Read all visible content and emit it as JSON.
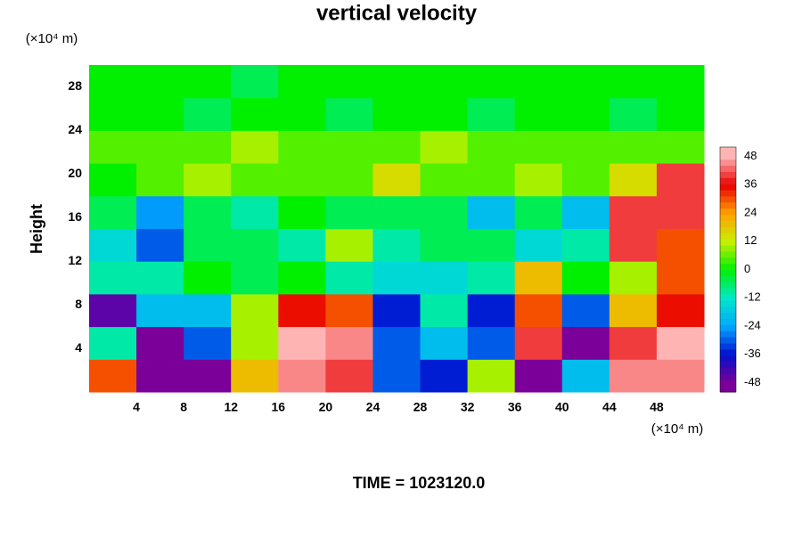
{
  "chart_data": {
    "type": "heatmap",
    "title": "vertical velocity",
    "y_label": "Height",
    "x_unit": "(×10⁴ m)",
    "y_unit": "(×10⁴ m)",
    "footer": "TIME = 1023120.0",
    "xlim": [
      0,
      52
    ],
    "ylim": [
      0,
      30
    ],
    "xticks": [
      4,
      8,
      12,
      16,
      20,
      24,
      28,
      32,
      36,
      40,
      44,
      48
    ],
    "yticks": [
      4,
      8,
      12,
      16,
      20,
      24,
      28
    ],
    "x_edges": [
      0,
      4,
      8,
      12,
      16,
      20,
      24,
      28,
      32,
      36,
      40,
      44,
      48,
      52
    ],
    "y_edges": [
      0,
      3,
      6,
      9,
      12,
      15,
      18,
      21,
      24,
      27,
      30
    ],
    "z": [
      [
        30,
        -48,
        -48,
        20,
        45,
        40,
        -30,
        -35,
        10,
        -48,
        -20,
        45,
        45
      ],
      [
        -10,
        -48,
        -30,
        10,
        48,
        45,
        -30,
        -20,
        -30,
        40,
        -48,
        40,
        48
      ],
      [
        -45,
        -20,
        -20,
        10,
        35,
        30,
        -35,
        -10,
        -35,
        30,
        -30,
        20,
        35
      ],
      [
        -10,
        -10,
        0,
        -5,
        0,
        -10,
        -15,
        -15,
        -10,
        20,
        0,
        10,
        30
      ],
      [
        -15,
        -30,
        -5,
        -5,
        -10,
        10,
        -10,
        -5,
        -5,
        -15,
        -10,
        40,
        30
      ],
      [
        -5,
        -25,
        -5,
        -10,
        0,
        -5,
        -5,
        -5,
        -20,
        -5,
        -20,
        40,
        40
      ],
      [
        0,
        5,
        10,
        5,
        5,
        5,
        15,
        5,
        5,
        10,
        5,
        15,
        40
      ],
      [
        5,
        5,
        5,
        10,
        5,
        5,
        5,
        10,
        5,
        5,
        5,
        5,
        5
      ],
      [
        0,
        0,
        -5,
        0,
        0,
        -5,
        0,
        0,
        -5,
        0,
        0,
        -5,
        0
      ],
      [
        0,
        0,
        0,
        -5,
        0,
        0,
        0,
        0,
        0,
        0,
        0,
        0,
        0
      ]
    ],
    "zlim": [
      -52,
      52
    ],
    "zticks": [
      48,
      36,
      24,
      12,
      0,
      -12,
      -24,
      -36,
      -48
    ],
    "colorscale": [
      [
        -48,
        "#7a0099"
      ],
      [
        -36,
        "#0010d0"
      ],
      [
        -24,
        "#00a8ff"
      ],
      [
        -12,
        "#00e8c8"
      ],
      [
        0,
        "#00f000"
      ],
      [
        12,
        "#c8f000"
      ],
      [
        24,
        "#ffa000"
      ],
      [
        36,
        "#e80000"
      ],
      [
        48,
        "#ffb4b4"
      ]
    ]
  }
}
